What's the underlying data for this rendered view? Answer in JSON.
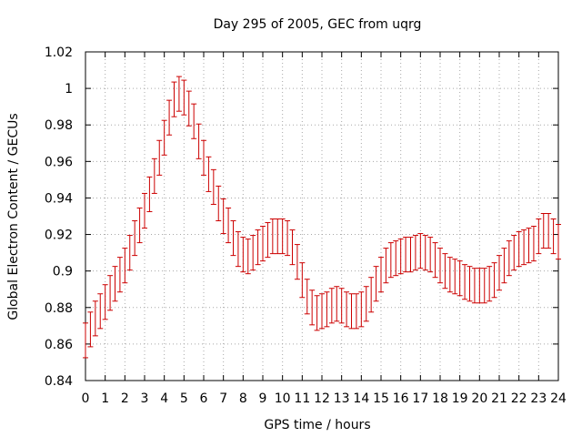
{
  "chart_data": {
    "type": "line",
    "title": "Day 295 of 2005, GEC from uqrg",
    "xlabel": "GPS time / hours",
    "ylabel": "Global Electron Content / GECUs",
    "xlim": [
      0,
      24
    ],
    "ylim": [
      0.84,
      1.02
    ],
    "grid": true,
    "error_bars": true,
    "series_color": "#cc0000",
    "x_ticks": [
      "0",
      "1",
      "2",
      "3",
      "4",
      "5",
      "6",
      "7",
      "8",
      "9",
      "10",
      "11",
      "12",
      "13",
      "14",
      "15",
      "16",
      "17",
      "18",
      "19",
      "20",
      "21",
      "22",
      "23",
      "24"
    ],
    "y_ticks": [
      "0.84",
      "0.86",
      "0.88",
      "0.9",
      "0.92",
      "0.94",
      "0.96",
      "0.98",
      "1",
      "1.02"
    ],
    "series": [
      {
        "x": [
          0,
          0.25,
          0.5,
          0.75,
          1,
          1.25,
          1.5,
          1.75,
          2,
          2.25,
          2.5,
          2.75,
          3,
          3.25,
          3.5,
          3.75,
          4,
          4.25,
          4.5,
          4.75,
          5,
          5.25,
          5.5,
          5.75,
          6,
          6.25,
          6.5,
          6.75,
          7,
          7.25,
          7.5,
          7.75,
          8,
          8.25,
          8.5,
          8.75,
          9,
          9.25,
          9.5,
          9.75,
          10,
          10.25,
          10.5,
          10.75,
          11,
          11.25,
          11.5,
          11.75,
          12,
          12.25,
          12.5,
          12.75,
          13,
          13.25,
          13.5,
          13.75,
          14,
          14.25,
          14.5,
          14.75,
          15,
          15.25,
          15.5,
          15.75,
          16,
          16.25,
          16.5,
          16.75,
          17,
          17.25,
          17.5,
          17.75,
          18,
          18.25,
          18.5,
          18.75,
          19,
          19.25,
          19.5,
          19.75,
          20,
          20.25,
          20.5,
          20.75,
          21,
          21.25,
          21.5,
          21.75,
          22,
          22.25,
          22.5,
          22.75,
          23,
          23.25,
          23.5,
          23.75,
          24
        ],
        "y": [
          0.862,
          0.868,
          0.874,
          0.878,
          0.883,
          0.888,
          0.893,
          0.898,
          0.903,
          0.91,
          0.918,
          0.925,
          0.933,
          0.942,
          0.952,
          0.962,
          0.973,
          0.984,
          0.994,
          0.997,
          0.995,
          0.989,
          0.982,
          0.971,
          0.962,
          0.953,
          0.946,
          0.937,
          0.93,
          0.925,
          0.918,
          0.912,
          0.909,
          0.908,
          0.91,
          0.913,
          0.915,
          0.917,
          0.919,
          0.919,
          0.919,
          0.918,
          0.913,
          0.905,
          0.895,
          0.886,
          0.88,
          0.877,
          0.878,
          0.879,
          0.881,
          0.882,
          0.881,
          0.879,
          0.878,
          0.878,
          0.879,
          0.882,
          0.887,
          0.893,
          0.898,
          0.903,
          0.906,
          0.907,
          0.908,
          0.909,
          0.909,
          0.91,
          0.911,
          0.91,
          0.909,
          0.906,
          0.903,
          0.9,
          0.898,
          0.897,
          0.896,
          0.894,
          0.893,
          0.892,
          0.892,
          0.892,
          0.893,
          0.895,
          0.899,
          0.903,
          0.907,
          0.91,
          0.912,
          0.913,
          0.914,
          0.915,
          0.919,
          0.922,
          0.922,
          0.919,
          0.916
        ],
        "error": [
          0.0095,
          0.0095,
          0.0095,
          0.0095,
          0.0095,
          0.0095,
          0.0095,
          0.0095,
          0.0095,
          0.0095,
          0.0095,
          0.0095,
          0.0095,
          0.0095,
          0.0095,
          0.0095,
          0.0095,
          0.0095,
          0.0095,
          0.0095,
          0.0095,
          0.0095,
          0.0095,
          0.0095,
          0.0095,
          0.0095,
          0.0095,
          0.0095,
          0.0095,
          0.0095,
          0.0095,
          0.0095,
          0.0095,
          0.0095,
          0.0095,
          0.0095,
          0.0095,
          0.0095,
          0.0095,
          0.0095,
          0.0095,
          0.0095,
          0.0095,
          0.0095,
          0.0095,
          0.0095,
          0.0095,
          0.0095,
          0.0095,
          0.0095,
          0.0095,
          0.0095,
          0.0095,
          0.0095,
          0.0095,
          0.0095,
          0.0095,
          0.0095,
          0.0095,
          0.0095,
          0.0095,
          0.0095,
          0.0095,
          0.0095,
          0.0095,
          0.0095,
          0.0095,
          0.0095,
          0.0095,
          0.0095,
          0.0095,
          0.0095,
          0.0095,
          0.0095,
          0.0095,
          0.0095,
          0.0095,
          0.0095,
          0.0095,
          0.0095,
          0.0095,
          0.0095,
          0.0095,
          0.0095,
          0.0095,
          0.0095,
          0.0095,
          0.0095,
          0.0095,
          0.0095,
          0.0095,
          0.0095,
          0.0095,
          0.0095,
          0.0095,
          0.0095,
          0.0095
        ]
      }
    ]
  }
}
